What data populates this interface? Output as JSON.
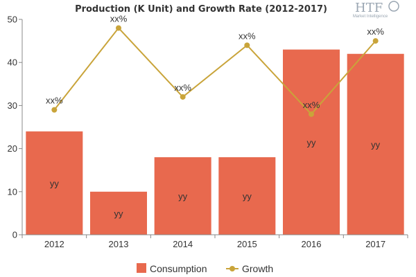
{
  "chart_data": {
    "type": "bar",
    "title": "Production (K Unit) and Growth Rate (2012-2017)",
    "categories": [
      "2012",
      "2013",
      "2014",
      "2015",
      "2016",
      "2017"
    ],
    "ylim": [
      0,
      50
    ],
    "yticks": [
      0,
      10,
      20,
      30,
      40,
      50
    ],
    "xlabel": "",
    "ylabel": "",
    "grid": false,
    "series": [
      {
        "name": "Consumption",
        "type": "bar",
        "color": "#e8694e",
        "values": [
          24,
          10,
          18,
          18,
          43,
          42
        ],
        "labels": [
          "yy",
          "yy",
          "yy",
          "yy",
          "yy",
          "yy"
        ]
      },
      {
        "name": "Growth",
        "type": "line",
        "color": "#c9a43a",
        "values": [
          29,
          48,
          32,
          44,
          28,
          45
        ],
        "labels": [
          "xx%",
          "xx%",
          "xx%",
          "xx%",
          "xx%",
          "xx%"
        ]
      }
    ],
    "legend": {
      "position": "bottom-center",
      "items": [
        "Consumption",
        "Growth"
      ]
    }
  },
  "logo": {
    "text": "HTF",
    "subtext": "Market Intelligence",
    "color": "#9aa6b2"
  }
}
